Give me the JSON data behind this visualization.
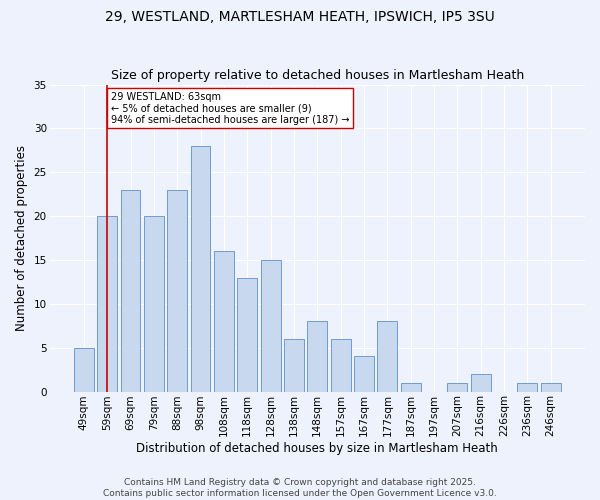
{
  "title": "29, WESTLAND, MARTLESHAM HEATH, IPSWICH, IP5 3SU",
  "subtitle": "Size of property relative to detached houses in Martlesham Heath",
  "xlabel": "Distribution of detached houses by size in Martlesham Heath",
  "ylabel": "Number of detached properties",
  "categories": [
    "49sqm",
    "59sqm",
    "69sqm",
    "79sqm",
    "88sqm",
    "98sqm",
    "108sqm",
    "118sqm",
    "128sqm",
    "138sqm",
    "148sqm",
    "157sqm",
    "167sqm",
    "177sqm",
    "187sqm",
    "197sqm",
    "207sqm",
    "216sqm",
    "226sqm",
    "236sqm",
    "246sqm"
  ],
  "values": [
    5,
    20,
    23,
    20,
    23,
    28,
    16,
    13,
    15,
    6,
    8,
    6,
    4,
    8,
    1,
    0,
    1,
    2,
    0,
    1,
    1
  ],
  "bar_color": "#c8d8ee",
  "bar_edge_color": "#6090c8",
  "vline_x": 1.0,
  "vline_color": "#cc0000",
  "annotation_text": "29 WESTLAND: 63sqm\n← 5% of detached houses are smaller (9)\n94% of semi-detached houses are larger (187) →",
  "annotation_box_color": "#ffffff",
  "annotation_box_edge": "#cc0000",
  "ylim": [
    0,
    35
  ],
  "yticks": [
    0,
    5,
    10,
    15,
    20,
    25,
    30,
    35
  ],
  "footer_line1": "Contains HM Land Registry data © Crown copyright and database right 2025.",
  "footer_line2": "Contains public sector information licensed under the Open Government Licence v3.0.",
  "bg_color": "#eef2fc",
  "grid_color": "#ffffff",
  "title_fontsize": 10,
  "subtitle_fontsize": 9,
  "axis_label_fontsize": 8.5,
  "tick_fontsize": 7.5,
  "footer_fontsize": 6.5
}
